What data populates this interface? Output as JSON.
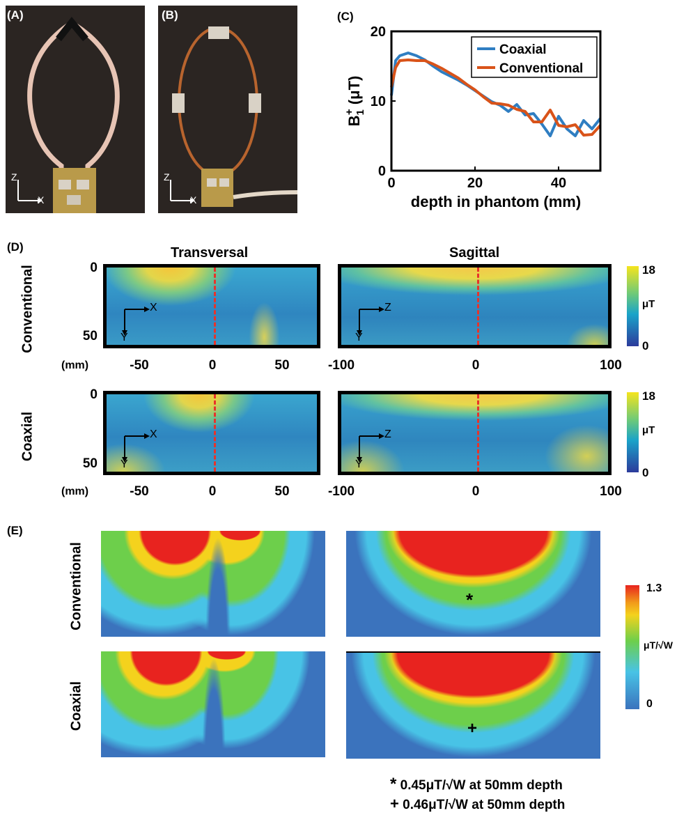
{
  "panels": {
    "a": {
      "label": "(A)"
    },
    "b": {
      "label": "(B)"
    },
    "c": {
      "label": "(C)"
    },
    "d": {
      "label": "(D)"
    },
    "e": {
      "label": "(E)"
    }
  },
  "photo_axes": {
    "vertical": "Z",
    "horizontal": "X"
  },
  "chart_data": {
    "type": "line",
    "xlabel": "depth in phantom (mm)",
    "ylabel": "B1+ (μT)",
    "xlim": [
      0,
      50
    ],
    "ylim": [
      0,
      20
    ],
    "xticks": [
      "0",
      "20",
      "40"
    ],
    "yticks": [
      "0",
      "10",
      "20"
    ],
    "legend_position": "top-right",
    "grid": false,
    "series": [
      {
        "name": "Coaxial",
        "color": "#2f7ec2",
        "x": [
          0,
          1,
          2,
          4,
          6,
          8,
          10,
          12,
          14,
          16,
          18,
          20,
          22,
          24,
          26,
          28,
          30,
          32,
          34,
          36,
          38,
          40,
          42,
          44,
          46,
          48,
          50
        ],
        "y": [
          10.8,
          15.8,
          16.5,
          16.9,
          16.5,
          15.9,
          15.0,
          14.2,
          13.6,
          13.0,
          12.3,
          11.5,
          10.7,
          9.9,
          9.4,
          8.5,
          9.5,
          8.0,
          8.2,
          6.7,
          5.0,
          7.8,
          6.0,
          5.0,
          7.2,
          6.0,
          7.5
        ]
      },
      {
        "name": "Conventional",
        "color": "#d95319",
        "x": [
          0,
          1,
          2,
          4,
          6,
          8,
          10,
          12,
          14,
          16,
          18,
          20,
          22,
          24,
          26,
          28,
          30,
          32,
          34,
          36,
          38,
          40,
          42,
          44,
          46,
          48,
          50
        ],
        "y": [
          12.0,
          14.8,
          15.8,
          15.9,
          15.8,
          15.8,
          15.3,
          14.7,
          14.0,
          13.3,
          12.4,
          11.6,
          10.6,
          9.7,
          9.6,
          9.4,
          8.8,
          8.5,
          7.0,
          7.0,
          8.7,
          6.5,
          6.3,
          6.6,
          5.1,
          5.2,
          6.5
        ]
      }
    ]
  },
  "panel_d": {
    "col_titles": [
      "Transversal",
      "Sagittal"
    ],
    "row_labels": [
      "Conventional",
      "Coaxial"
    ],
    "unit_label": "(mm)",
    "y_ticks": [
      "0",
      "50"
    ],
    "trans_x_ticks": [
      "-50",
      "0",
      "50"
    ],
    "sag_x_ticks": [
      "-100",
      "0",
      "100"
    ],
    "trans_axes": {
      "h": "X",
      "v": "Y"
    },
    "sag_axes": {
      "h": "Z",
      "v": "Y"
    },
    "colorbar": {
      "max": "18",
      "min": "0",
      "unit": "μT"
    }
  },
  "panel_e": {
    "row_labels": [
      "Conventional",
      "Coaxial"
    ],
    "colorbar": {
      "max": "1.3",
      "min": "0",
      "unit": "μT/√W"
    },
    "markers": [
      "*",
      "+"
    ],
    "notes": [
      {
        "symbol": "*",
        "text": "0.45μT/√W at 50mm depth"
      },
      {
        "symbol": "+",
        "text": "0.46μT/√W at 50mm depth"
      }
    ]
  },
  "colors": {
    "jet_low": "#2c3b9c",
    "jet_mid": "#1ec6c6",
    "jet_high": "#f5dc18",
    "e_red": "#e8231f",
    "dashed_line": "#e8332a"
  }
}
